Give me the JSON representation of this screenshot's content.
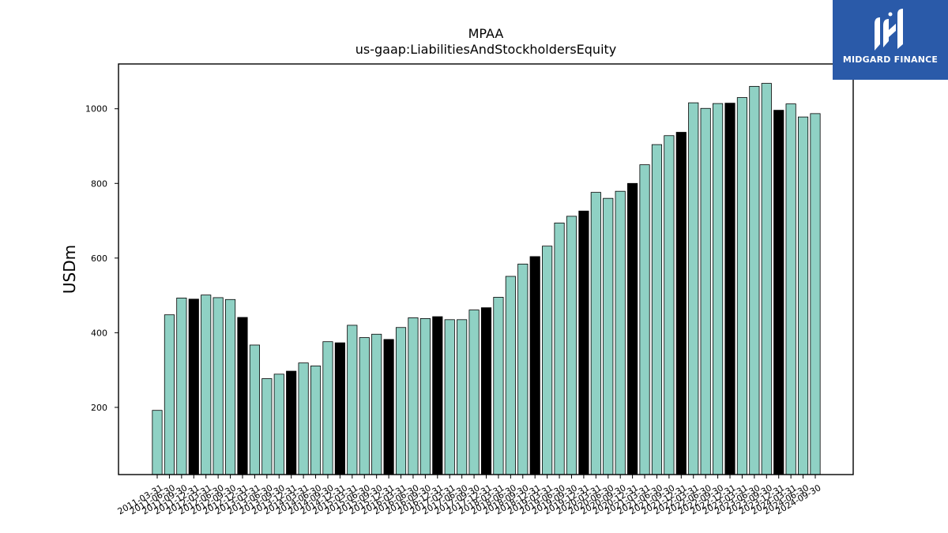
{
  "chart_data": {
    "type": "bar",
    "title": "MPAA",
    "subtitle": "us-gaap:LiabilitiesAndStockholdersEquity",
    "xlabel": "",
    "ylabel": "USDm",
    "ylim": [
      20,
      1120
    ],
    "yticks": [
      200,
      400,
      600,
      800,
      1000
    ],
    "grid": false,
    "colors": {
      "bar": "#8fd1c4",
      "highlight": "#000000",
      "edge": "#000000"
    },
    "categories": [
      "2011-03-31",
      "2011-06-30",
      "2011-09-30",
      "2011-12-31",
      "2012-03-31",
      "2012-06-30",
      "2012-09-30",
      "2012-12-31",
      "2013-03-31",
      "2013-06-30",
      "2013-09-30",
      "2013-12-31",
      "2014-03-31",
      "2014-06-30",
      "2014-09-30",
      "2014-12-31",
      "2015-03-31",
      "2015-06-30",
      "2015-09-30",
      "2015-12-31",
      "2016-03-31",
      "2016-06-30",
      "2016-09-30",
      "2016-12-31",
      "2017-03-31",
      "2017-06-30",
      "2017-09-30",
      "2017-12-31",
      "2018-03-31",
      "2018-06-30",
      "2018-09-30",
      "2018-12-31",
      "2019-03-31",
      "2019-06-30",
      "2019-09-30",
      "2019-12-31",
      "2020-03-31",
      "2020-06-30",
      "2020-09-30",
      "2020-12-31",
      "2021-03-31",
      "2021-06-30",
      "2021-09-30",
      "2021-12-31",
      "2022-03-31",
      "2022-06-30",
      "2022-09-30",
      "2022-12-31",
      "2023-03-31",
      "2023-06-30",
      "2023-09-30",
      "2023-12-31",
      "2024-03-31",
      "2024-06-30",
      "2024-09-30"
    ],
    "values": [
      192,
      448,
      493,
      490,
      501,
      494,
      489,
      441,
      367,
      277,
      289,
      297,
      319,
      311,
      376,
      373,
      420,
      387,
      396,
      382,
      414,
      440,
      438,
      443,
      435,
      435,
      461,
      467,
      495,
      551,
      584,
      604,
      632,
      694,
      712,
      726,
      776,
      760,
      779,
      800,
      850,
      904,
      928,
      937,
      1016,
      1001,
      1014,
      1015,
      1030,
      1060,
      1068,
      996,
      1013,
      978,
      987
    ],
    "highlight_categories": [
      "2011-12-31",
      "2012-12-31",
      "2013-12-31",
      "2014-12-31",
      "2015-12-31",
      "2016-12-31",
      "2017-12-31",
      "2018-12-31",
      "2019-12-31",
      "2020-12-31",
      "2021-12-31",
      "2022-12-31",
      "2023-12-31"
    ]
  },
  "logo": {
    "text": "MIDGARD FINANCE",
    "icon": "midgard-m-logo-icon",
    "background": "#2a5aa9"
  }
}
